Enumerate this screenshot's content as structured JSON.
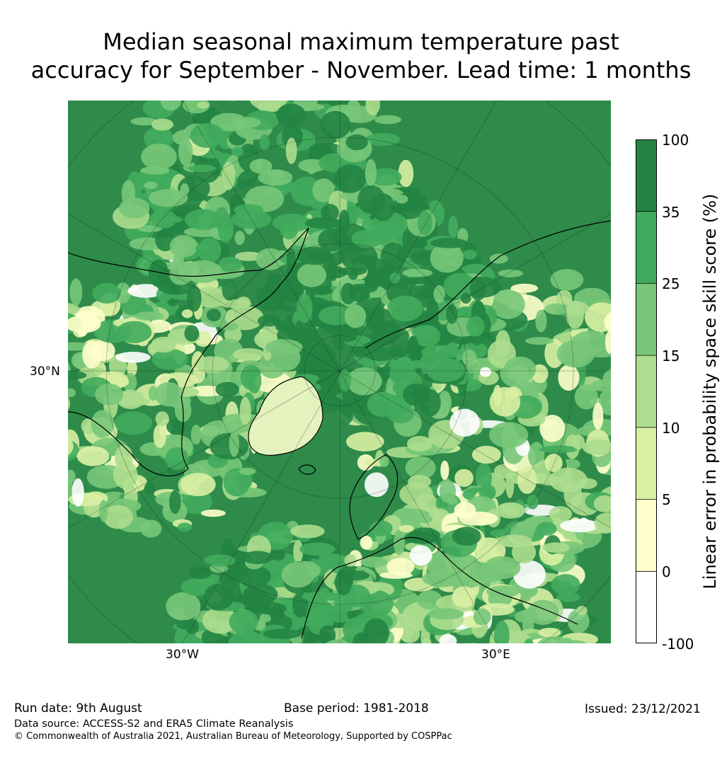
{
  "title": {
    "line1": "Median seasonal maximum temperature past",
    "line2": "accuracy for September - November. Lead time: 1 months"
  },
  "axes": {
    "lat_label": "30°N",
    "lon_labels": [
      "30°W",
      "30°E"
    ]
  },
  "colorbar": {
    "label": "Linear error in probability space skill score (%)",
    "ticks": [
      "100",
      "35",
      "25",
      "15",
      "10",
      "5",
      "0",
      "-100"
    ],
    "colors": [
      "#238443",
      "#41ab5d",
      "#78c679",
      "#addd8e",
      "#d9f0a3",
      "#ffffcc",
      "#ffffff"
    ]
  },
  "footer": {
    "run_date": "Run date: 9th August",
    "base_period": "Base period: 1981-2018",
    "issued": "Issued: 23/12/2021",
    "data_source": "Data source: ACCESS-S2 and ERA5 Climate Reanalysis",
    "copyright": "© Commonwealth of Australia 2021, Australian Bureau of Meteorology, Supported by COSPPac"
  }
}
